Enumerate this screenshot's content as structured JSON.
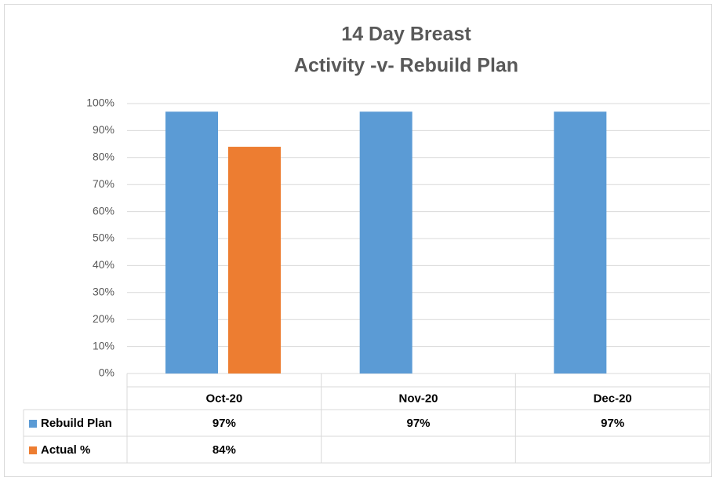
{
  "chart_data": {
    "type": "bar",
    "title": [
      "14 Day Breast",
      "Activity -v- Rebuild Plan"
    ],
    "categories": [
      "Oct-20",
      "Nov-20",
      "Dec-20"
    ],
    "series": [
      {
        "name": "Rebuild Plan",
        "color": "#5b9bd5",
        "values": [
          97,
          97,
          97
        ],
        "value_labels": [
          "97%",
          "97%",
          "97%"
        ]
      },
      {
        "name": "Actual %",
        "color": "#ed7d31",
        "values": [
          84,
          null,
          null
        ],
        "value_labels": [
          "84%",
          null,
          null
        ]
      }
    ],
    "ylim": [
      0,
      100
    ],
    "yticks": [
      {
        "value": 0,
        "label": "0%"
      },
      {
        "value": 10,
        "label": "10%"
      },
      {
        "value": 20,
        "label": "20%"
      },
      {
        "value": 30,
        "label": "30%"
      },
      {
        "value": 40,
        "label": "40%"
      },
      {
        "value": 50,
        "label": "50%"
      },
      {
        "value": 60,
        "label": "60%"
      },
      {
        "value": 70,
        "label": "70%"
      },
      {
        "value": 80,
        "label": "80%"
      },
      {
        "value": 90,
        "label": "90%"
      },
      {
        "value": 100,
        "label": "100%"
      }
    ],
    "grid": true
  }
}
